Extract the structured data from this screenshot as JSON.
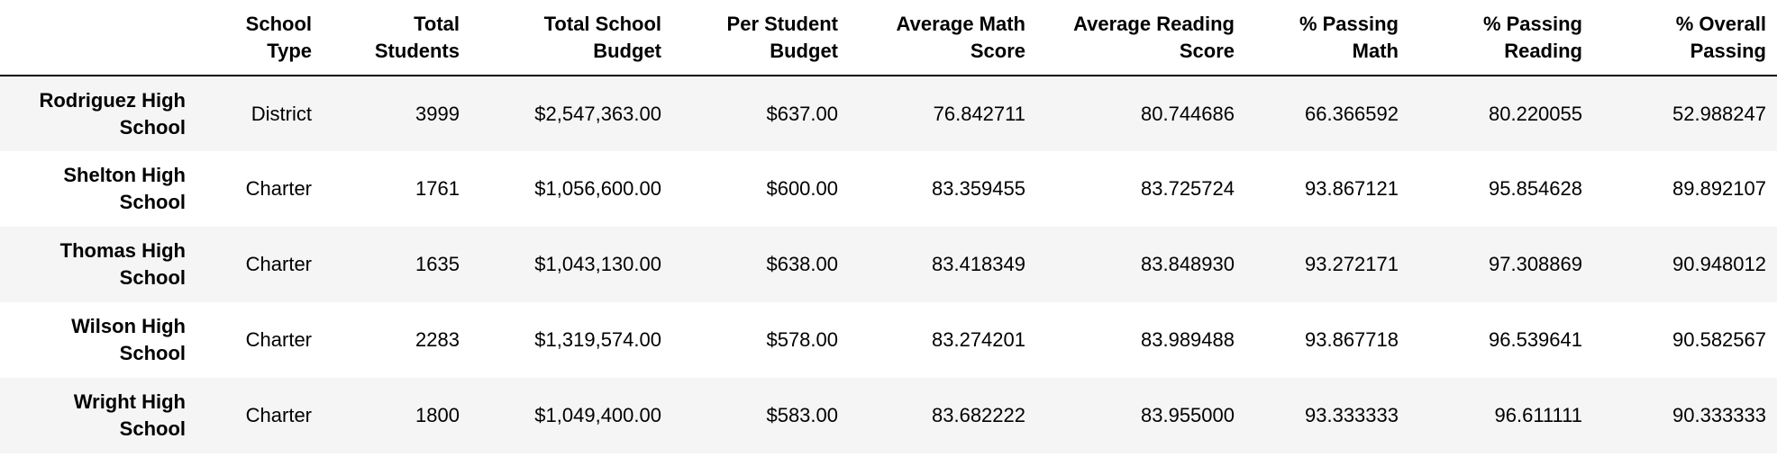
{
  "table": {
    "columns": [
      "",
      "School Type",
      "Total Students",
      "Total School Budget",
      "Per Student Budget",
      "Average Math Score",
      "Average Reading Score",
      "% Passing Math",
      "% Passing Reading",
      "% Overall Passing"
    ],
    "rows": [
      {
        "school": "Rodriguez High School",
        "type": "District",
        "students": "3999",
        "budget": "$2,547,363.00",
        "per_student": "$637.00",
        "avg_math": "76.842711",
        "avg_reading": "80.744686",
        "pass_math": "66.366592",
        "pass_reading": "80.220055",
        "overall": "52.988247"
      },
      {
        "school": "Shelton High School",
        "type": "Charter",
        "students": "1761",
        "budget": "$1,056,600.00",
        "per_student": "$600.00",
        "avg_math": "83.359455",
        "avg_reading": "83.725724",
        "pass_math": "93.867121",
        "pass_reading": "95.854628",
        "overall": "89.892107"
      },
      {
        "school": "Thomas High School",
        "type": "Charter",
        "students": "1635",
        "budget": "$1,043,130.00",
        "per_student": "$638.00",
        "avg_math": "83.418349",
        "avg_reading": "83.848930",
        "pass_math": "93.272171",
        "pass_reading": "97.308869",
        "overall": "90.948012"
      },
      {
        "school": "Wilson High School",
        "type": "Charter",
        "students": "2283",
        "budget": "$1,319,574.00",
        "per_student": "$578.00",
        "avg_math": "83.274201",
        "avg_reading": "83.989488",
        "pass_math": "93.867718",
        "pass_reading": "96.539641",
        "overall": "90.582567"
      },
      {
        "school": "Wright High School",
        "type": "Charter",
        "students": "1800",
        "budget": "$1,049,400.00",
        "per_student": "$583.00",
        "avg_math": "83.682222",
        "avg_reading": "83.955000",
        "pass_math": "93.333333",
        "pass_reading": "96.611111",
        "overall": "90.333333"
      }
    ]
  }
}
